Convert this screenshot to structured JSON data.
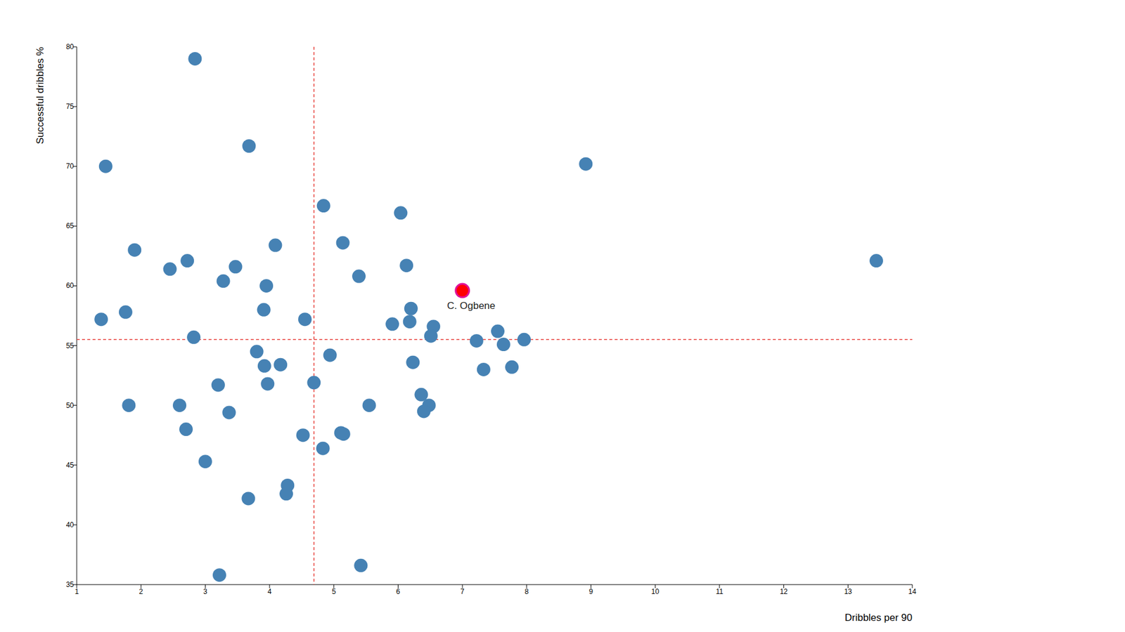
{
  "chart_data": {
    "type": "scatter",
    "x_label": "Dribbles per 90",
    "y_label": "Successful dribbles %",
    "xlim": [
      1,
      14
    ],
    "ylim": [
      35,
      80
    ],
    "xticks": [
      1,
      2,
      3,
      4,
      5,
      6,
      7,
      8,
      9,
      10,
      11,
      12,
      13,
      14
    ],
    "yticks": [
      35,
      40,
      45,
      50,
      55,
      60,
      65,
      70,
      75,
      80
    ],
    "grid": false,
    "color": "#4682b4",
    "marker": "circle",
    "x": [
      2.84,
      3.68,
      1.45,
      8.92,
      13.44,
      4.84,
      6.04,
      1.9,
      4.09,
      5.14,
      2.45,
      2.72,
      3.47,
      6.13,
      5.39,
      3.28,
      3.95,
      1.38,
      1.76,
      3.91,
      4.55,
      6.2,
      5.91,
      6.18,
      6.55,
      6.51,
      2.82,
      7.55,
      7.22,
      7.96,
      7.64,
      3.8,
      4.94,
      3.92,
      4.17,
      6.23,
      7.33,
      7.77,
      3.2,
      3.97,
      4.69,
      6.36,
      1.81,
      2.6,
      6.48,
      5.55,
      3.37,
      6.4,
      2.7,
      4.52,
      5.11,
      5.15,
      4.83,
      3.0,
      4.28,
      4.26,
      3.67,
      3.22,
      5.42
    ],
    "values": [
      79.0,
      71.7,
      70.0,
      70.2,
      62.1,
      66.7,
      66.1,
      63.0,
      63.4,
      63.6,
      61.4,
      62.1,
      61.6,
      61.7,
      60.8,
      60.4,
      60.0,
      57.2,
      57.8,
      58.0,
      57.2,
      58.1,
      56.8,
      57.0,
      56.6,
      55.8,
      55.7,
      56.2,
      55.4,
      55.5,
      55.1,
      54.5,
      54.2,
      53.3,
      53.4,
      53.6,
      53.0,
      53.2,
      51.7,
      51.8,
      51.9,
      50.9,
      50.0,
      50.0,
      50.0,
      50.0,
      49.4,
      49.5,
      48.0,
      47.5,
      47.7,
      47.6,
      46.4,
      45.3,
      43.3,
      42.6,
      42.2,
      35.8,
      36.6
    ],
    "highlight": {
      "label": "C. Ogbene",
      "x": 7.0,
      "y": 59.6,
      "color": "#ff0000"
    },
    "x_reference": 4.69,
    "y_reference": 55.5
  }
}
